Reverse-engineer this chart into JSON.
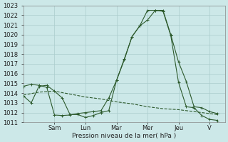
{
  "xlabel": "Pression niveau de la mer( hPa )",
  "ylim": [
    1011,
    1023
  ],
  "yticks": [
    1011,
    1012,
    1013,
    1014,
    1015,
    1016,
    1017,
    1018,
    1019,
    1020,
    1021,
    1022,
    1023
  ],
  "background_color": "#cce8e8",
  "grid_color": "#aacccc",
  "line_color": "#2d5a2d",
  "day_labels": [
    "Sam",
    "Lun",
    "Mar",
    "Mer",
    "Jeu",
    "V"
  ],
  "day_positions": [
    2,
    4,
    6,
    8,
    10,
    12
  ],
  "xlim": [
    0,
    13
  ],
  "series1_x": [
    0,
    0.5,
    1,
    1.5,
    2,
    2.5,
    3,
    3.5,
    4,
    4.5,
    5,
    5.5,
    6,
    6.5,
    7,
    7.5,
    8,
    8.5,
    9,
    9.5,
    10,
    10.5,
    11,
    11.5,
    12,
    12.5
  ],
  "series1_y": [
    1013.7,
    1013.0,
    1014.7,
    1014.8,
    1014.2,
    1013.5,
    1011.8,
    1011.8,
    1011.5,
    1011.7,
    1012.0,
    1012.2,
    1015.3,
    1017.5,
    1019.8,
    1020.9,
    1021.5,
    1022.5,
    1022.5,
    1020.0,
    1017.2,
    1015.2,
    1012.6,
    1012.5,
    1012.1,
    1011.9
  ],
  "series2_x": [
    0,
    1,
    2,
    3,
    4,
    5,
    6,
    7,
    8,
    9,
    10,
    11,
    12,
    12.5
  ],
  "series2_y": [
    1013.8,
    1014.1,
    1014.2,
    1013.9,
    1013.6,
    1013.4,
    1013.1,
    1012.9,
    1012.6,
    1012.4,
    1012.3,
    1012.1,
    1011.9,
    1011.8
  ],
  "series3_x": [
    0,
    0.5,
    1,
    1.5,
    2,
    2.5,
    3,
    3.5,
    4,
    4.5,
    5,
    5.5,
    6,
    6.5,
    7,
    7.5,
    8,
    8.5,
    9,
    9.5,
    10,
    10.5,
    11,
    11.5,
    12,
    12.5
  ],
  "series3_y": [
    1014.7,
    1014.9,
    1014.8,
    1014.6,
    1011.75,
    1011.7,
    1011.75,
    1011.9,
    1012.0,
    1012.1,
    1012.2,
    1013.5,
    1015.3,
    1017.4,
    1019.8,
    1020.9,
    1022.5,
    1022.5,
    1022.4,
    1019.9,
    1015.1,
    1012.6,
    1012.5,
    1011.7,
    1011.3,
    1011.2
  ]
}
